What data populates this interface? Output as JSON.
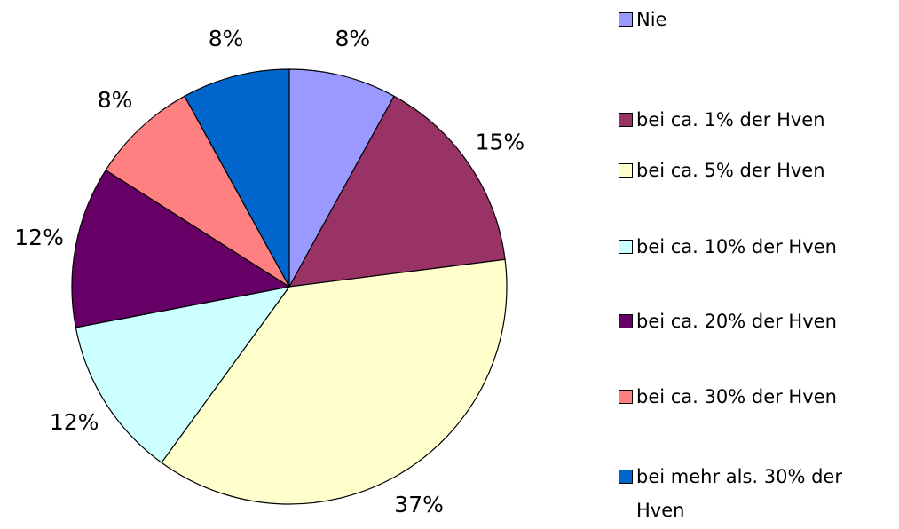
{
  "chart_data": {
    "type": "pie",
    "categories": [
      "Nie",
      "bei ca. 1% der Hven",
      "bei ca. 5% der Hven",
      "bei ca. 10% der Hven",
      "bei ca. 20% der Hven",
      "bei ca. 30% der Hven",
      "bei mehr als. 30% der Hven"
    ],
    "values": [
      8,
      15,
      37,
      12,
      12,
      8,
      8
    ],
    "value_labels": [
      "8%",
      "15%",
      "37%",
      "12%",
      "12%",
      "8%",
      "8%"
    ],
    "colors": [
      "#9999ff",
      "#993366",
      "#ffffcc",
      "#ccffff",
      "#660066",
      "#ff8080",
      "#0066cc"
    ],
    "legend": "right"
  }
}
